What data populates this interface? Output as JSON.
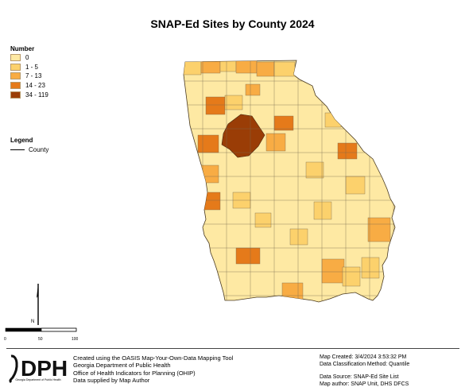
{
  "title": "SNAP-Ed Sites by County 2024",
  "legend": {
    "heading": "Number",
    "items": [
      {
        "label": "0",
        "color": "#fee9a3"
      },
      {
        "label": "1 - 5",
        "color": "#fcd16c"
      },
      {
        "label": "7 - 13",
        "color": "#f8ac44"
      },
      {
        "label": "14 - 23",
        "color": "#e57a1a"
      },
      {
        "label": "34 - 119",
        "color": "#9a3d06"
      }
    ]
  },
  "legend2": {
    "heading": "Legend",
    "county_label": "County"
  },
  "scale": {
    "labels": [
      "0",
      "50",
      "100"
    ]
  },
  "north_label": "N",
  "logo": {
    "text": "DPH",
    "caption": "Georgia Department of Public Health"
  },
  "credits": [
    "Created using the OASIS Map-Your-Own-Data Mapping Tool",
    "Georgia Department of Public Health",
    "Office of Health Indicators for Planning (OHIP)",
    "Data supplied by Map Author"
  ],
  "meta": {
    "created": "Map Created:  3/4/2024 3:53:32 PM",
    "classification": "Data Classification Method: Quantile",
    "source": "Data Source: SNAP-Ed Site List",
    "author": "Map author:  SNAP Unit, DHS DFCS"
  }
}
